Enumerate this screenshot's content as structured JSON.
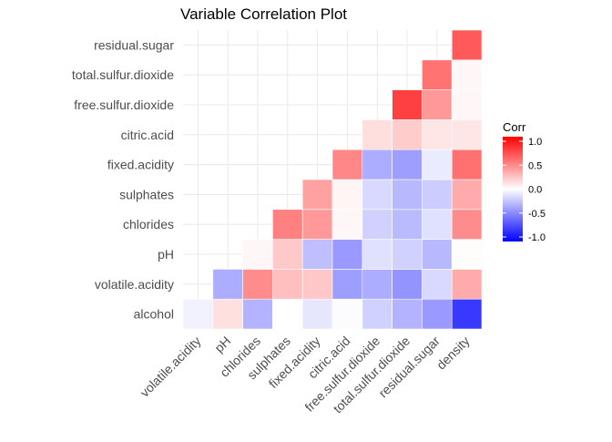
{
  "chart_data": {
    "type": "heatmap",
    "title": "Variable Correlation Plot",
    "x_categories": [
      "volatile.acidity",
      "pH",
      "chlorides",
      "sulphates",
      "fixed.acidity",
      "citric.acid",
      "free.sulfur.dioxide",
      "total.sulfur.dioxide",
      "residual.sugar",
      "density"
    ],
    "y_categories": [
      "alcohol",
      "volatile.acidity",
      "pH",
      "chlorides",
      "sulphates",
      "fixed.acidity",
      "citric.acid",
      "free.sulfur.dioxide",
      "total.sulfur.dioxide",
      "residual.sugar"
    ],
    "cells": [
      {
        "x": "volatile.acidity",
        "y": "alcohol",
        "value": 0.07
      },
      {
        "x": "pH",
        "y": "alcohol",
        "value": 0.12
      },
      {
        "x": "chlorides",
        "y": "alcohol",
        "value": -0.36
      },
      {
        "x": "sulphates",
        "y": "alcohol",
        "value": -0.02
      },
      {
        "x": "fixed.acidity",
        "y": "alcohol",
        "value": -0.12
      },
      {
        "x": "citric.acid",
        "y": "alcohol",
        "value": -0.08
      },
      {
        "x": "free.sulfur.dioxide",
        "y": "alcohol",
        "value": -0.25
      },
      {
        "x": "total.sulfur.dioxide",
        "y": "alcohol",
        "value": -0.45
      },
      {
        "x": "residual.sugar",
        "y": "alcohol",
        "value": -0.45
      },
      {
        "x": "density",
        "y": "alcohol",
        "value": -0.78
      },
      {
        "x": "pH",
        "y": "volatile.acidity",
        "value": -0.32
      },
      {
        "x": "chlorides",
        "y": "volatile.acidity",
        "value": 0.07
      },
      {
        "x": "sulphates",
        "y": "volatile.acidity",
        "value": -0.04
      },
      {
        "x": "fixed.acidity",
        "y": "volatile.acidity",
        "value": -0.02
      },
      {
        "x": "citric.acid",
        "y": "volatile.acidity",
        "value": -0.15
      },
      {
        "x": "free.sulfur.dioxide",
        "y": "volatile.acidity",
        "value": -0.1
      },
      {
        "x": "total.sulfur.dioxide",
        "y": "volatile.acidity",
        "value": -0.09
      },
      {
        "x": "residual.sugar",
        "y": "volatile.acidity",
        "value": 0.06
      },
      {
        "x": "density",
        "y": "volatile.acidity",
        "value": 0.03
      },
      {
        "x": "chlorides",
        "y": "pH",
        "value": 0.43
      },
      {
        "x": "sulphates",
        "y": "pH",
        "value": 0.22
      },
      {
        "x": "fixed.acidity",
        "y": "pH",
        "value": 0.1
      },
      {
        "x": "citric.acid",
        "y": "pH",
        "value": 0.21
      },
      {
        "x": "free.sulfur.dioxide",
        "y": "pH",
        "value": 0.14
      },
      {
        "x": "total.sulfur.dioxide",
        "y": "pH",
        "value": 0.34
      },
      {
        "x": "residual.sugar",
        "y": "pH",
        "value": 0.22
      },
      {
        "x": "density",
        "y": "pH",
        "value": 0.27
      },
      {
        "x": "sulphates",
        "y": "chlorides",
        "value": 0.09
      },
      {
        "x": "fixed.acidity",
        "y": "chlorides",
        "value": 0.07
      },
      {
        "x": "citric.acid",
        "y": "chlorides",
        "value": -0.08
      },
      {
        "x": "free.sulfur.dioxide",
        "y": "chlorides",
        "value": -0.02
      },
      {
        "x": "total.sulfur.dioxide",
        "y": "chlorides",
        "value": -0.24
      },
      {
        "x": "residual.sugar",
        "y": "chlorides",
        "value": 0.04
      },
      {
        "x": "density",
        "y": "chlorides",
        "value": -0.01
      },
      {
        "x": "fixed.acidity",
        "y": "sulphates",
        "value": -0.06
      },
      {
        "x": "citric.acid",
        "y": "sulphates",
        "value": 0.04
      },
      {
        "x": "free.sulfur.dioxide",
        "y": "sulphates",
        "value": -0.03
      },
      {
        "x": "total.sulfur.dioxide",
        "y": "sulphates",
        "value": 0.02
      },
      {
        "x": "residual.sugar",
        "y": "sulphates",
        "value": 0.05
      },
      {
        "x": "density",
        "y": "sulphates",
        "value": 0.0
      },
      {
        "x": "citric.acid",
        "y": "fixed.acidity",
        "value": 0.29
      },
      {
        "x": "free.sulfur.dioxide",
        "y": "fixed.acidity",
        "value": -0.05
      },
      {
        "x": "total.sulfur.dioxide",
        "y": "fixed.acidity",
        "value": 0.09
      },
      {
        "x": "residual.sugar",
        "y": "fixed.acidity",
        "value": 0.09
      },
      {
        "x": "density",
        "y": "fixed.acidity",
        "value": 0.27
      },
      {
        "x": "free.sulfur.dioxide",
        "y": "citric.acid",
        "value": 0.09
      },
      {
        "x": "total.sulfur.dioxide",
        "y": "citric.acid",
        "value": 0.12
      },
      {
        "x": "residual.sugar",
        "y": "citric.acid",
        "value": 0.09
      },
      {
        "x": "density",
        "y": "citric.acid",
        "value": 0.15
      },
      {
        "x": "total.sulfur.dioxide",
        "y": "free.sulfur.dioxide",
        "value": 0.62
      },
      {
        "x": "residual.sugar",
        "y": "free.sulfur.dioxide",
        "value": 0.3
      },
      {
        "x": "density",
        "y": "free.sulfur.dioxide",
        "value": 0.29
      },
      {
        "x": "residual.sugar",
        "y": "total.sulfur.dioxide",
        "value": 0.4
      },
      {
        "x": "density",
        "y": "total.sulfur.dioxide",
        "value": 0.53
      },
      {
        "x": "density",
        "y": "residual.sugar",
        "value": 0.84
      }
    ],
    "value_overrides": [
      {
        "x": "fixed.acidity",
        "y": "volatile.acidity",
        "value": 0.22
      },
      {
        "x": "chlorides",
        "y": "volatile.acidity",
        "value": 0.45
      },
      {
        "x": "sulphates",
        "y": "volatile.acidity",
        "value": 0.25
      },
      {
        "x": "citric.acid",
        "y": "volatile.acidity",
        "value": -0.38
      },
      {
        "x": "free.sulfur.dioxide",
        "y": "volatile.acidity",
        "value": -0.32
      },
      {
        "x": "total.sulfur.dioxide",
        "y": "volatile.acidity",
        "value": -0.42
      },
      {
        "x": "residual.sugar",
        "y": "volatile.acidity",
        "value": -0.15
      },
      {
        "x": "density",
        "y": "volatile.acidity",
        "value": 0.33
      },
      {
        "x": "chlorides",
        "y": "pH",
        "value": 0.03
      },
      {
        "x": "sulphates",
        "y": "pH",
        "value": 0.21
      },
      {
        "x": "fixed.acidity",
        "y": "pH",
        "value": -0.25
      },
      {
        "x": "citric.acid",
        "y": "pH",
        "value": -0.4
      },
      {
        "x": "free.sulfur.dioxide",
        "y": "pH",
        "value": -0.12
      },
      {
        "x": "total.sulfur.dioxide",
        "y": "pH",
        "value": -0.18
      },
      {
        "x": "residual.sugar",
        "y": "pH",
        "value": -0.28
      },
      {
        "x": "density",
        "y": "pH",
        "value": 0.01
      },
      {
        "x": "sulphates",
        "y": "chlorides",
        "value": 0.5
      },
      {
        "x": "fixed.acidity",
        "y": "chlorides",
        "value": 0.4
      },
      {
        "x": "citric.acid",
        "y": "chlorides",
        "value": 0.03
      },
      {
        "x": "free.sulfur.dioxide",
        "y": "chlorides",
        "value": -0.18
      },
      {
        "x": "total.sulfur.dioxide",
        "y": "chlorides",
        "value": -0.27
      },
      {
        "x": "residual.sugar",
        "y": "chlorides",
        "value": -0.12
      },
      {
        "x": "density",
        "y": "chlorides",
        "value": 0.45
      },
      {
        "x": "fixed.acidity",
        "y": "sulphates",
        "value": 0.37
      },
      {
        "x": "citric.acid",
        "y": "sulphates",
        "value": 0.04
      },
      {
        "x": "free.sulfur.dioxide",
        "y": "sulphates",
        "value": -0.15
      },
      {
        "x": "total.sulfur.dioxide",
        "y": "sulphates",
        "value": -0.28
      },
      {
        "x": "residual.sugar",
        "y": "sulphates",
        "value": -0.2
      },
      {
        "x": "density",
        "y": "sulphates",
        "value": 0.33
      },
      {
        "x": "citric.acid",
        "y": "fixed.acidity",
        "value": 0.47
      },
      {
        "x": "free.sulfur.dioxide",
        "y": "fixed.acidity",
        "value": -0.32
      },
      {
        "x": "total.sulfur.dioxide",
        "y": "fixed.acidity",
        "value": -0.38
      },
      {
        "x": "residual.sugar",
        "y": "fixed.acidity",
        "value": -0.08
      },
      {
        "x": "density",
        "y": "fixed.acidity",
        "value": 0.56
      },
      {
        "x": "free.sulfur.dioxide",
        "y": "citric.acid",
        "value": 0.13
      },
      {
        "x": "total.sulfur.dioxide",
        "y": "citric.acid",
        "value": 0.2
      },
      {
        "x": "residual.sugar",
        "y": "citric.acid",
        "value": 0.1
      },
      {
        "x": "density",
        "y": "citric.acid",
        "value": 0.1
      },
      {
        "x": "total.sulfur.dioxide",
        "y": "free.sulfur.dioxide",
        "value": 0.75
      },
      {
        "x": "residual.sugar",
        "y": "free.sulfur.dioxide",
        "value": 0.4
      },
      {
        "x": "density",
        "y": "free.sulfur.dioxide",
        "value": 0.03
      },
      {
        "x": "residual.sugar",
        "y": "total.sulfur.dioxide",
        "value": 0.55
      },
      {
        "x": "density",
        "y": "total.sulfur.dioxide",
        "value": 0.03
      },
      {
        "x": "density",
        "y": "residual.sugar",
        "value": 0.65
      },
      {
        "x": "volatile.acidity",
        "y": "alcohol",
        "value": -0.05
      },
      {
        "x": "pH",
        "y": "alcohol",
        "value": 0.12
      },
      {
        "x": "chlorides",
        "y": "alcohol",
        "value": -0.3
      },
      {
        "x": "sulphates",
        "y": "alcohol",
        "value": 0.0
      },
      {
        "x": "fixed.acidity",
        "y": "alcohol",
        "value": -0.1
      },
      {
        "x": "citric.acid",
        "y": "alcohol",
        "value": -0.01
      },
      {
        "x": "free.sulfur.dioxide",
        "y": "alcohol",
        "value": -0.18
      },
      {
        "x": "total.sulfur.dioxide",
        "y": "alcohol",
        "value": -0.3
      },
      {
        "x": "residual.sugar",
        "y": "alcohol",
        "value": -0.4
      },
      {
        "x": "density",
        "y": "alcohol",
        "value": -0.78
      }
    ],
    "legend": {
      "title": "Corr",
      "ticks": [
        1.0,
        0.5,
        0.0,
        -0.5,
        -1.0
      ],
      "tick_labels": [
        "1.0",
        "0.5",
        "0.0",
        "-0.5",
        "-1.0"
      ],
      "position": "right"
    },
    "colors": {
      "low": "#0000ff",
      "mid": "#ffffff",
      "high": "#ff0000",
      "grid": "#ebebeb"
    },
    "value_range": [
      -1,
      1
    ],
    "grid": true
  }
}
